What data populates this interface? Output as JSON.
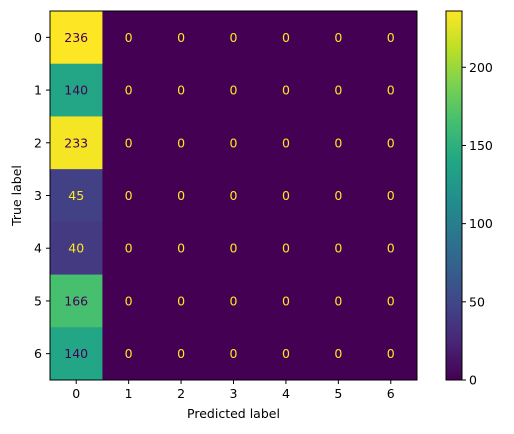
{
  "chart_data": {
    "type": "heatmap",
    "title": "",
    "xlabel": "Predicted label",
    "ylabel": "True label",
    "x_categories": [
      "0",
      "1",
      "2",
      "3",
      "4",
      "5",
      "6"
    ],
    "y_categories": [
      "0",
      "1",
      "2",
      "3",
      "4",
      "5",
      "6"
    ],
    "values": [
      [
        236,
        0,
        0,
        0,
        0,
        0,
        0
      ],
      [
        140,
        0,
        0,
        0,
        0,
        0,
        0
      ],
      [
        233,
        0,
        0,
        0,
        0,
        0,
        0
      ],
      [
        45,
        0,
        0,
        0,
        0,
        0,
        0
      ],
      [
        40,
        0,
        0,
        0,
        0,
        0,
        0
      ],
      [
        166,
        0,
        0,
        0,
        0,
        0,
        0
      ],
      [
        140,
        0,
        0,
        0,
        0,
        0,
        0
      ]
    ],
    "colormap": "viridis",
    "color_range": [
      0,
      236
    ],
    "colorbar_ticks": [
      0,
      50,
      100,
      150,
      200
    ],
    "text_color_light": "#fde725",
    "text_color_dark": "#440154"
  }
}
